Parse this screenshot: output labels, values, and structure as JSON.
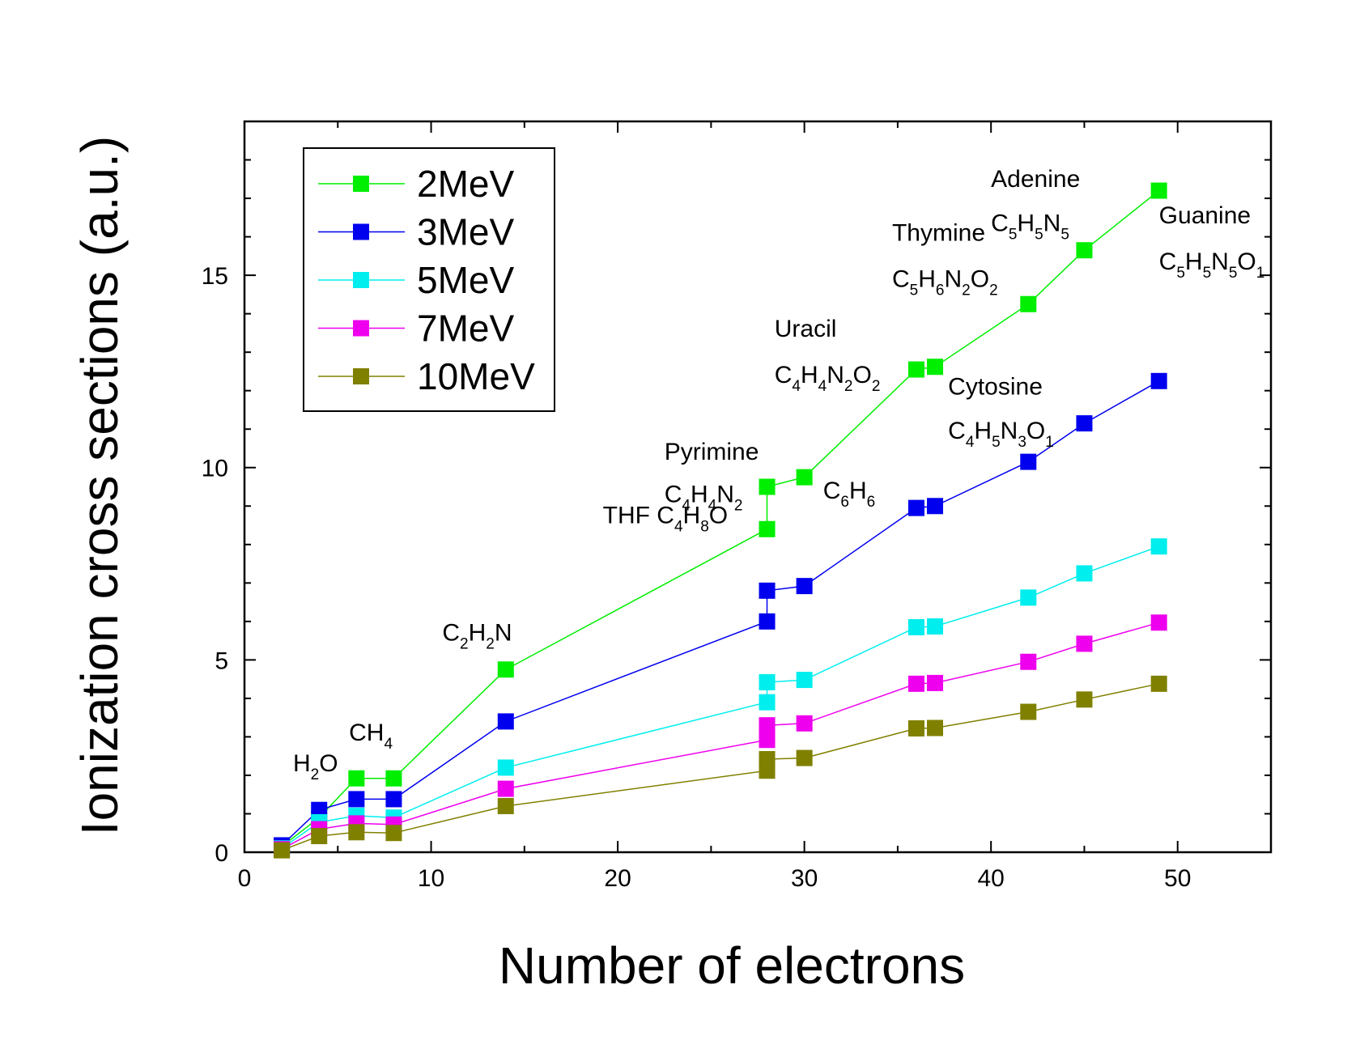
{
  "chart_data": {
    "type": "line",
    "xlabel": "Number of electrons",
    "ylabel": "Ionization cross sections (a.u.)",
    "xlim": [
      0,
      55
    ],
    "ylim": [
      0,
      19
    ],
    "xticks": [
      "0",
      "10",
      "20",
      "30",
      "40",
      "50"
    ],
    "xtick_values": [
      0,
      10,
      20,
      30,
      40,
      50
    ],
    "yticks": [
      "0",
      "5",
      "10",
      "15"
    ],
    "ytick_values": [
      0,
      5,
      10,
      15
    ],
    "grid": false,
    "legend_position": "top-left",
    "marker": "square",
    "series": [
      {
        "name": "2MeV",
        "color": "#00ee00",
        "points": [
          [
            2,
            0.15
          ],
          [
            4,
            0.9
          ],
          [
            6,
            1.92
          ],
          [
            8,
            1.92
          ],
          [
            14,
            4.75
          ],
          [
            28,
            8.4
          ],
          [
            28,
            9.5
          ],
          [
            30,
            9.75
          ],
          [
            36,
            12.55
          ],
          [
            37,
            12.62
          ],
          [
            42,
            14.25
          ],
          [
            45,
            15.65
          ],
          [
            49,
            17.2
          ]
        ]
      },
      {
        "name": "3MeV",
        "color": "#0000ee",
        "points": [
          [
            2,
            0.18
          ],
          [
            4,
            1.1
          ],
          [
            6,
            1.38
          ],
          [
            8,
            1.38
          ],
          [
            14,
            3.4
          ],
          [
            28,
            6.0
          ],
          [
            28,
            6.8
          ],
          [
            30,
            6.92
          ],
          [
            36,
            8.95
          ],
          [
            37,
            9.0
          ],
          [
            42,
            10.15
          ],
          [
            45,
            11.15
          ],
          [
            49,
            12.25
          ]
        ]
      },
      {
        "name": "5MeV",
        "color": "#00eeee",
        "points": [
          [
            2,
            0.1
          ],
          [
            4,
            0.78
          ],
          [
            6,
            0.95
          ],
          [
            8,
            0.9
          ],
          [
            14,
            2.2
          ],
          [
            28,
            3.9
          ],
          [
            28,
            4.42
          ],
          [
            30,
            4.48
          ],
          [
            36,
            5.85
          ],
          [
            37,
            5.87
          ],
          [
            42,
            6.62
          ],
          [
            45,
            7.25
          ],
          [
            49,
            7.95
          ]
        ]
      },
      {
        "name": "7MeV",
        "color": "#ee00ee",
        "points": [
          [
            2,
            0.08
          ],
          [
            4,
            0.6
          ],
          [
            6,
            0.75
          ],
          [
            8,
            0.72
          ],
          [
            14,
            1.65
          ],
          [
            28,
            2.92
          ],
          [
            28,
            3.3
          ],
          [
            30,
            3.35
          ],
          [
            36,
            4.38
          ],
          [
            37,
            4.4
          ],
          [
            42,
            4.95
          ],
          [
            45,
            5.42
          ],
          [
            49,
            5.97
          ]
        ]
      },
      {
        "name": "10MeV",
        "color": "#808000",
        "points": [
          [
            2,
            0.05
          ],
          [
            4,
            0.42
          ],
          [
            6,
            0.52
          ],
          [
            8,
            0.5
          ],
          [
            14,
            1.2
          ],
          [
            28,
            2.12
          ],
          [
            28,
            2.42
          ],
          [
            30,
            2.45
          ],
          [
            36,
            3.22
          ],
          [
            37,
            3.23
          ],
          [
            42,
            3.65
          ],
          [
            45,
            3.97
          ],
          [
            49,
            4.38
          ]
        ]
      }
    ],
    "annotations": [
      {
        "x": 2.6,
        "y": 2.1,
        "parts": [
          [
            "H",
            ""
          ],
          [
            "2",
            "sub"
          ],
          [
            "O",
            ""
          ]
        ]
      },
      {
        "x": 5.6,
        "y": 2.9,
        "parts": [
          [
            "CH",
            ""
          ],
          [
            "4",
            "sub"
          ]
        ]
      },
      {
        "x": 10.6,
        "y": 5.5,
        "parts": [
          [
            "C",
            ""
          ],
          [
            "2",
            "sub"
          ],
          [
            "H",
            ""
          ],
          [
            "2",
            "sub"
          ],
          [
            "N",
            ""
          ]
        ]
      },
      {
        "x": 22.5,
        "y": 10.2,
        "parts": [
          [
            "Pyrimine",
            ""
          ]
        ]
      },
      {
        "x": 22.5,
        "y": 9.1,
        "parts": [
          [
            "C",
            ""
          ],
          [
            "4",
            "sub"
          ],
          [
            "H",
            ""
          ],
          [
            "4",
            "sub"
          ],
          [
            "N",
            ""
          ],
          [
            "2",
            "sub"
          ]
        ]
      },
      {
        "x": 19.2,
        "y": 8.55,
        "parts": [
          [
            "THF C",
            ""
          ],
          [
            "4",
            "sub"
          ],
          [
            "H",
            ""
          ],
          [
            "8",
            "sub"
          ],
          [
            "O",
            ""
          ]
        ]
      },
      {
        "x": 31.0,
        "y": 9.2,
        "parts": [
          [
            "C",
            ""
          ],
          [
            "6",
            "sub"
          ],
          [
            "H",
            ""
          ],
          [
            "6",
            "sub"
          ]
        ]
      },
      {
        "x": 28.4,
        "y": 13.4,
        "parts": [
          [
            "Uracil",
            ""
          ]
        ]
      },
      {
        "x": 28.4,
        "y": 12.2,
        "parts": [
          [
            "C",
            ""
          ],
          [
            "4",
            "sub"
          ],
          [
            "H",
            ""
          ],
          [
            "4",
            "sub"
          ],
          [
            "N",
            ""
          ],
          [
            "2",
            "sub"
          ],
          [
            "O",
            ""
          ],
          [
            "2",
            "sub"
          ]
        ]
      },
      {
        "x": 37.7,
        "y": 11.9,
        "parts": [
          [
            "Cytosine",
            ""
          ]
        ]
      },
      {
        "x": 37.7,
        "y": 10.75,
        "parts": [
          [
            "C",
            ""
          ],
          [
            "4",
            "sub"
          ],
          [
            "H",
            ""
          ],
          [
            "5",
            "sub"
          ],
          [
            "N",
            ""
          ],
          [
            "3",
            "sub"
          ],
          [
            "O",
            ""
          ],
          [
            "1",
            "sub"
          ]
        ]
      },
      {
        "x": 34.7,
        "y": 15.9,
        "parts": [
          [
            "Thymine",
            ""
          ]
        ]
      },
      {
        "x": 34.7,
        "y": 14.7,
        "parts": [
          [
            "C",
            ""
          ],
          [
            "5",
            "sub"
          ],
          [
            "H",
            ""
          ],
          [
            "6",
            "sub"
          ],
          [
            "N",
            ""
          ],
          [
            "2",
            "sub"
          ],
          [
            "O",
            ""
          ],
          [
            "2",
            "sub"
          ]
        ]
      },
      {
        "x": 40.0,
        "y": 17.3,
        "parts": [
          [
            "Adenine",
            ""
          ]
        ]
      },
      {
        "x": 40.0,
        "y": 16.15,
        "parts": [
          [
            "C",
            ""
          ],
          [
            "5",
            "sub"
          ],
          [
            "H",
            ""
          ],
          [
            "5",
            "sub"
          ],
          [
            "N",
            ""
          ],
          [
            "5",
            "sub"
          ]
        ]
      },
      {
        "x": 49.0,
        "y": 16.35,
        "parts": [
          [
            "Guanine",
            ""
          ]
        ]
      },
      {
        "x": 49.0,
        "y": 15.15,
        "parts": [
          [
            "C",
            ""
          ],
          [
            "5",
            "sub"
          ],
          [
            "H",
            ""
          ],
          [
            "5",
            "sub"
          ],
          [
            "N",
            ""
          ],
          [
            "5",
            "sub"
          ],
          [
            "O",
            ""
          ],
          [
            "1",
            "sub"
          ]
        ]
      }
    ]
  }
}
